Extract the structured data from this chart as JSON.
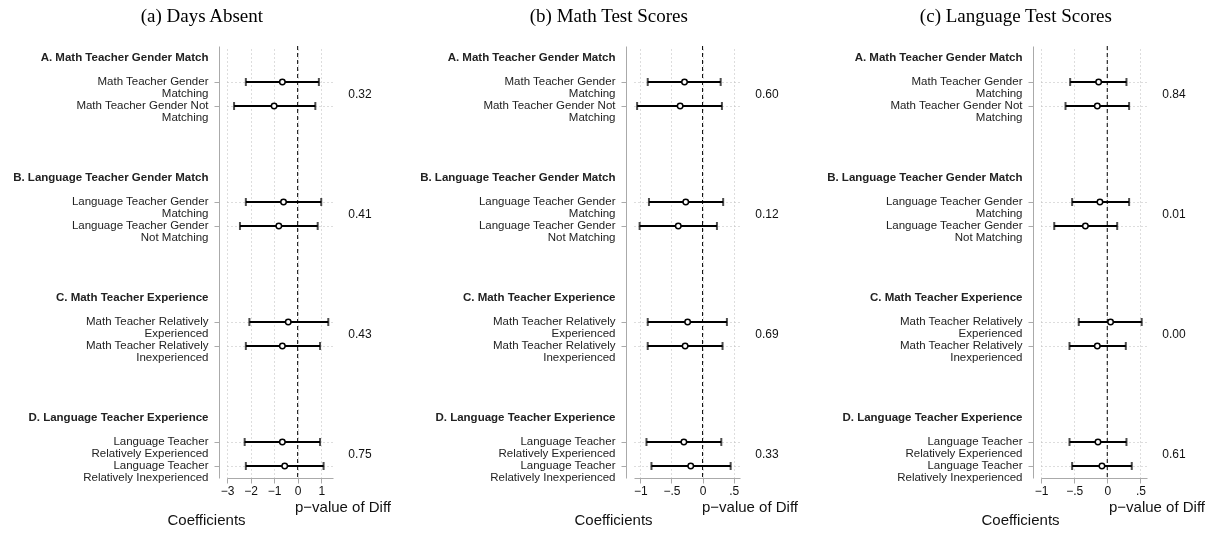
{
  "chart_data": [
    {
      "type": "scatter",
      "orientation": "horizontal",
      "title": "(a) Days Absent",
      "xlabel": "Coefficients",
      "grid": true,
      "marker": "circle",
      "categories": [
        "Math Teacher Gender Matching",
        "Math Teacher Gender Not Matching",
        "Language Teacher Gender Matching",
        "Language Teacher Gender Not Matching",
        "Math Teacher Relatively Experienced",
        "Math Teacher Relatively Inexperienced",
        "Language Teacher Relatively Experienced",
        "Language Teacher Relatively Inexperienced"
      ],
      "series": [
        {
          "color": "#000000",
          "values": [
            -0.65,
            -1.0,
            -0.6,
            -0.8,
            -0.4,
            -0.65,
            -0.65,
            -0.55
          ],
          "errors": [
            [
              -2.2,
              0.9
            ],
            [
              -2.7,
              0.75
            ],
            [
              -2.2,
              1.0
            ],
            [
              -2.45,
              0.85
            ],
            [
              -2.05,
              1.3
            ],
            [
              -2.2,
              0.95
            ],
            [
              -2.25,
              0.95
            ],
            [
              -2.2,
              1.1
            ]
          ]
        }
      ],
      "xlim": [
        -3,
        1.5
      ],
      "xticks": [
        -3,
        -2,
        -1,
        0,
        1
      ],
      "ref_lines": [
        {
          "axis": "x",
          "value": 0,
          "line_style": "dashed",
          "color": "#000000"
        }
      ],
      "annotations": [
        "A. Math Teacher Gender Match",
        "B. Language Teacher Gender Match",
        "C. Math Teacher Experience",
        "D. Language Teacher Experience",
        "0.32",
        "0.41",
        "0.43",
        "0.75",
        "p−value of Diff"
      ]
    },
    {
      "type": "scatter",
      "orientation": "horizontal",
      "title": "(b) Math Test Scores",
      "xlabel": "Coefficients",
      "grid": true,
      "marker": "circle",
      "categories": [
        "Math Teacher Gender Matching",
        "Math Teacher Gender Not Matching",
        "Language Teacher Gender Matching",
        "Language Teacher Gender Not Matching",
        "Math Teacher Relatively Experienced",
        "Math Teacher Relatively Inexperienced",
        "Language Teacher Relatively Experienced",
        "Language Teacher Relatively Inexperienced"
      ],
      "series": [
        {
          "color": "#000000",
          "values": [
            -0.29,
            -0.36,
            -0.27,
            -0.39,
            -0.24,
            -0.28,
            -0.3,
            -0.19
          ],
          "errors": [
            [
              -0.88,
              0.29
            ],
            [
              -1.05,
              0.31
            ],
            [
              -0.86,
              0.33
            ],
            [
              -1.01,
              0.23
            ],
            [
              -0.88,
              0.39
            ],
            [
              -0.88,
              0.32
            ],
            [
              -0.9,
              0.3
            ],
            [
              -0.82,
              0.45
            ]
          ]
        }
      ],
      "xlim": [
        -1.1,
        0.6
      ],
      "xticks": [
        {
          "value": -1,
          "label": "−1"
        },
        {
          "value": -0.5,
          "label": "−.5"
        },
        0,
        {
          "value": 0.5,
          "label": ".5"
        }
      ],
      "ref_lines": [
        {
          "axis": "x",
          "value": 0,
          "line_style": "dashed",
          "color": "#000000"
        }
      ],
      "annotations": [
        "A. Math Teacher Gender Match",
        "B. Language Teacher Gender Match",
        "C. Math Teacher Experience",
        "D. Language Teacher Experience",
        "0.60",
        "0.12",
        "0.69",
        "0.33",
        "p−value of Diff"
      ]
    },
    {
      "type": "scatter",
      "orientation": "horizontal",
      "title": "(c) Language Test Scores",
      "xlabel": "Coefficients",
      "grid": true,
      "marker": "circle",
      "categories": [
        "Math Teacher Gender Matching",
        "Math Teacher Gender Not Matching",
        "Language Teacher Gender Matching",
        "Language Teacher Gender Not Matching",
        "Math Teacher Relatively Experienced",
        "Math Teacher Relatively Inexperienced",
        "Language Teacher Relatively Experienced",
        "Language Teacher Relatively Inexperienced"
      ],
      "series": [
        {
          "color": "#000000",
          "values": [
            -0.13,
            -0.15,
            -0.11,
            -0.33,
            0.05,
            -0.15,
            -0.14,
            -0.08
          ],
          "errors": [
            [
              -0.56,
              0.29
            ],
            [
              -0.63,
              0.33
            ],
            [
              -0.53,
              0.33
            ],
            [
              -0.8,
              0.15
            ],
            [
              -0.43,
              0.52
            ],
            [
              -0.57,
              0.28
            ],
            [
              -0.57,
              0.29
            ],
            [
              -0.53,
              0.37
            ]
          ]
        }
      ],
      "xlim": [
        -1,
        0.6
      ],
      "xticks": [
        {
          "value": -1,
          "label": "−1"
        },
        {
          "value": -0.5,
          "label": "−.5"
        },
        0,
        {
          "value": 0.5,
          "label": ".5"
        }
      ],
      "ref_lines": [
        {
          "axis": "x",
          "value": 0,
          "line_style": "dashed",
          "color": "#000000"
        }
      ],
      "annotations": [
        "A. Math Teacher Gender Match",
        "B. Language Teacher Gender Match",
        "C. Math Teacher Experience",
        "D. Language Teacher Experience",
        "0.84",
        "0.01",
        "0.00",
        "0.61",
        "p−value of Diff"
      ]
    }
  ]
}
